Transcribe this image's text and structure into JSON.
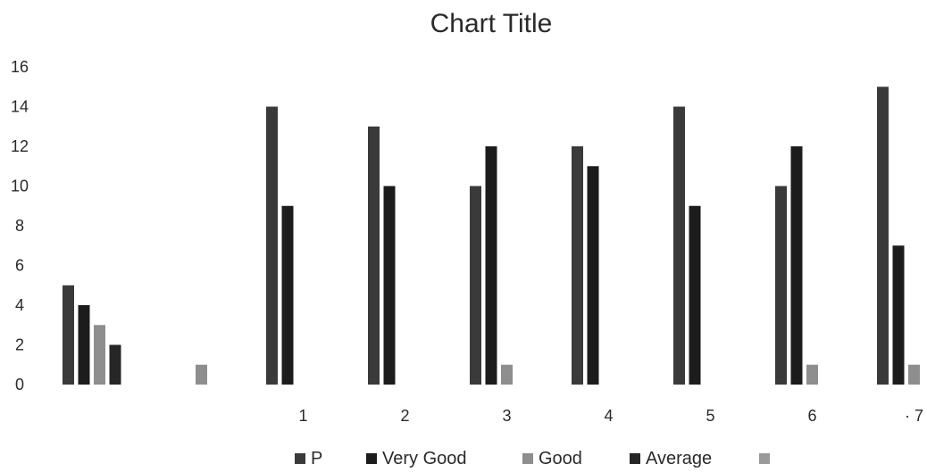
{
  "chart_data": {
    "type": "bar",
    "title": "Chart Title",
    "xlabel": "",
    "ylabel": "",
    "ylim": [
      0,
      16
    ],
    "yticks": [
      0,
      2,
      4,
      6,
      8,
      10,
      12,
      14,
      16
    ],
    "grid": false,
    "legend_position": "bottom",
    "categories": [
      "",
      "",
      "1",
      "2",
      "3",
      "4",
      "5",
      "6",
      "· 7"
    ],
    "series": [
      {
        "name": "P",
        "color": "#3a3a3a",
        "values": [
          5,
          0,
          14,
          13,
          10,
          12,
          14,
          10,
          15
        ]
      },
      {
        "name": "Very Good",
        "color": "#1c1c1c",
        "values": [
          4,
          0,
          9,
          10,
          12,
          11,
          9,
          12,
          7
        ]
      },
      {
        "name": "Good",
        "color": "#8e8e8e",
        "values": [
          3,
          1,
          0,
          0,
          1,
          0,
          0,
          1,
          1
        ]
      },
      {
        "name": "Average",
        "color": "#262626",
        "values": [
          2,
          0,
          0,
          0,
          0,
          0,
          0,
          0,
          0
        ]
      },
      {
        "name": "",
        "color": "#9a9a9a",
        "values": [
          0,
          0,
          0,
          0,
          0,
          0,
          0,
          0,
          0
        ]
      }
    ]
  }
}
